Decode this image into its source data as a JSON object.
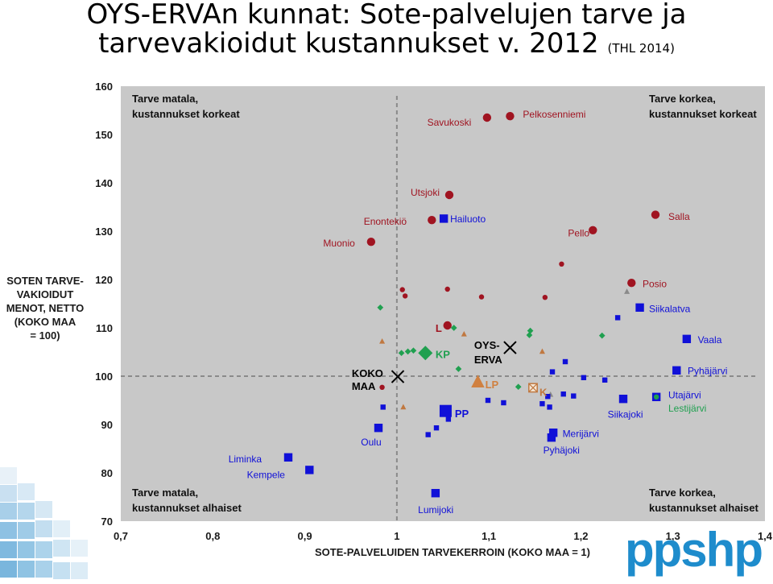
{
  "title": "OYS-ERVAn kunnat: Sote-palvelujen tarve ja",
  "title2": "tarvevakioidut kustannukset v. 2012",
  "title_source": "(THL 2014)",
  "logo": "ppshp",
  "chart_data": {
    "type": "scatter",
    "xlabel": "SOTE-PALVELUIDEN TARVEKERROIN (KOKO MAA = 1)",
    "ylabel_lines": [
      "SOTEN TARVE-",
      "VAKIOIDUT",
      "MENOT, NETTO",
      "(KOKO MAA",
      "= 100)"
    ],
    "xlim": [
      0.7,
      1.4
    ],
    "ylim": [
      70,
      160
    ],
    "xticks": [
      0.7,
      0.8,
      0.9,
      1,
      1.1,
      1.2,
      1.3,
      1.4
    ],
    "xtick_labels": [
      "0,7",
      "0,8",
      "0,9",
      "1",
      "1,1",
      "1,2",
      "1,3",
      "1,4"
    ],
    "yticks": [
      70,
      80,
      90,
      100,
      110,
      120,
      130,
      140,
      150,
      160
    ],
    "reference_lines": {
      "x": 1,
      "y": 100
    },
    "background": "#c8c8c8",
    "colors": {
      "red": "#a01421",
      "blue": "#1010d8",
      "green": "#20a050",
      "orange": "#d08040",
      "brown": "#c07840",
      "black": "#000000",
      "gray": "#8a8a8a"
    },
    "quadrant_labels": [
      {
        "lines": [
          "Tarve matala,",
          "kustannukset korkeat"
        ],
        "pos": "top-left"
      },
      {
        "lines": [
          "Tarve korkea,",
          "kustannukset korkeat"
        ],
        "pos": "top-right"
      },
      {
        "lines": [
          "Tarve matala,",
          "kustannukset alhaiset"
        ],
        "pos": "bottom-left"
      },
      {
        "lines": [
          "Tarve korkea,",
          "kustannukset alhaiset"
        ],
        "pos": "bottom-right"
      }
    ],
    "points": [
      {
        "x": 1.098,
        "y": 153.5,
        "shape": "circle",
        "color": "red",
        "size": "m"
      },
      {
        "x": 1.123,
        "y": 153.8,
        "shape": "circle",
        "color": "red",
        "size": "m"
      },
      {
        "x": 1.057,
        "y": 137.5,
        "shape": "circle",
        "color": "red",
        "size": "m"
      },
      {
        "x": 1.038,
        "y": 132.3,
        "shape": "circle",
        "color": "red",
        "size": "m"
      },
      {
        "x": 1.051,
        "y": 132.6,
        "shape": "square",
        "color": "blue",
        "size": "m"
      },
      {
        "x": 0.972,
        "y": 127.8,
        "shape": "circle",
        "color": "red",
        "size": "m"
      },
      {
        "x": 1.213,
        "y": 130.2,
        "shape": "circle",
        "color": "red",
        "size": "m"
      },
      {
        "x": 1.281,
        "y": 133.4,
        "shape": "circle",
        "color": "red",
        "size": "m"
      },
      {
        "x": 1.179,
        "y": 123.2,
        "shape": "circle",
        "color": "red",
        "size": "s"
      },
      {
        "x": 1.006,
        "y": 117.9,
        "shape": "circle",
        "color": "red",
        "size": "s"
      },
      {
        "x": 1.009,
        "y": 116.6,
        "shape": "circle",
        "color": "red",
        "size": "s"
      },
      {
        "x": 1.055,
        "y": 118.0,
        "shape": "circle",
        "color": "red",
        "size": "s"
      },
      {
        "x": 1.092,
        "y": 116.4,
        "shape": "circle",
        "color": "red",
        "size": "s"
      },
      {
        "x": 1.161,
        "y": 116.3,
        "shape": "circle",
        "color": "red",
        "size": "s"
      },
      {
        "x": 1.255,
        "y": 119.3,
        "shape": "circle",
        "color": "red",
        "size": "m"
      },
      {
        "x": 1.055,
        "y": 110.5,
        "shape": "circle",
        "color": "red",
        "size": "m"
      },
      {
        "x": 0.984,
        "y": 97.7,
        "shape": "circle",
        "color": "red",
        "size": "s"
      },
      {
        "x": 1.25,
        "y": 117.5,
        "shape": "triangle",
        "color": "gray",
        "size": "s"
      },
      {
        "x": 1.264,
        "y": 114.2,
        "shape": "square",
        "color": "blue",
        "size": "m"
      },
      {
        "x": 1.24,
        "y": 112.1,
        "shape": "square",
        "color": "blue",
        "size": "s"
      },
      {
        "x": 1.315,
        "y": 107.7,
        "shape": "square",
        "color": "blue",
        "size": "m"
      },
      {
        "x": 1.304,
        "y": 101.2,
        "shape": "square",
        "color": "blue",
        "size": "m"
      },
      {
        "x": 1.282,
        "y": 95.7,
        "shape": "square",
        "color": "blue",
        "size": "m"
      },
      {
        "x": 1.282,
        "y": 95.7,
        "shape": "circle",
        "color": "green",
        "size": "s"
      },
      {
        "x": 0.982,
        "y": 114.2,
        "shape": "diamond",
        "color": "green",
        "size": "s"
      },
      {
        "x": 0.984,
        "y": 107.2,
        "shape": "triangle",
        "color": "brown",
        "size": "s"
      },
      {
        "x": 1.005,
        "y": 104.8,
        "shape": "diamond",
        "color": "green",
        "size": "s"
      },
      {
        "x": 1.012,
        "y": 105.1,
        "shape": "diamond",
        "color": "green",
        "size": "s"
      },
      {
        "x": 1.018,
        "y": 105.3,
        "shape": "diamond",
        "color": "green",
        "size": "s"
      },
      {
        "x": 1.031,
        "y": 104.8,
        "shape": "diamond",
        "color": "green",
        "size": "l"
      },
      {
        "x": 1.062,
        "y": 110.0,
        "shape": "diamond",
        "color": "green",
        "size": "s"
      },
      {
        "x": 1.073,
        "y": 108.7,
        "shape": "triangle",
        "color": "brown",
        "size": "s"
      },
      {
        "x": 1.067,
        "y": 101.5,
        "shape": "diamond",
        "color": "green",
        "size": "s"
      },
      {
        "x": 1.145,
        "y": 109.4,
        "shape": "diamond",
        "color": "green",
        "size": "s"
      },
      {
        "x": 1.144,
        "y": 108.5,
        "shape": "diamond",
        "color": "green",
        "size": "s"
      },
      {
        "x": 1.158,
        "y": 105.1,
        "shape": "triangle",
        "color": "brown",
        "size": "s"
      },
      {
        "x": 1.223,
        "y": 108.4,
        "shape": "diamond",
        "color": "green",
        "size": "s"
      },
      {
        "x": 1.132,
        "y": 97.8,
        "shape": "diamond",
        "color": "green",
        "size": "s"
      },
      {
        "x": 1.088,
        "y": 98.8,
        "shape": "triangle",
        "color": "orange",
        "size": "l"
      },
      {
        "x": 1.167,
        "y": 96.2,
        "shape": "triangle",
        "color": "gray",
        "size": "s"
      },
      {
        "x": 1.007,
        "y": 93.6,
        "shape": "triangle",
        "color": "brown",
        "size": "s"
      },
      {
        "x": 1.183,
        "y": 103.0,
        "shape": "square",
        "color": "blue",
        "size": "s"
      },
      {
        "x": 1.169,
        "y": 100.9,
        "shape": "square",
        "color": "blue",
        "size": "s"
      },
      {
        "x": 1.203,
        "y": 99.7,
        "shape": "square",
        "color": "blue",
        "size": "s"
      },
      {
        "x": 1.226,
        "y": 99.2,
        "shape": "square",
        "color": "blue",
        "size": "s"
      },
      {
        "x": 1.164,
        "y": 95.8,
        "shape": "square",
        "color": "blue",
        "size": "s"
      },
      {
        "x": 1.181,
        "y": 96.3,
        "shape": "square",
        "color": "blue",
        "size": "s"
      },
      {
        "x": 1.192,
        "y": 95.9,
        "shape": "square",
        "color": "blue",
        "size": "s"
      },
      {
        "x": 1.246,
        "y": 95.3,
        "shape": "square",
        "color": "blue",
        "size": "m"
      },
      {
        "x": 1.099,
        "y": 95.0,
        "shape": "square",
        "color": "blue",
        "size": "s"
      },
      {
        "x": 1.116,
        "y": 94.5,
        "shape": "square",
        "color": "blue",
        "size": "s"
      },
      {
        "x": 1.158,
        "y": 94.3,
        "shape": "square",
        "color": "blue",
        "size": "s"
      },
      {
        "x": 1.166,
        "y": 93.6,
        "shape": "square",
        "color": "blue",
        "size": "s"
      },
      {
        "x": 1.053,
        "y": 92.8,
        "shape": "square",
        "color": "blue",
        "size": "l"
      },
      {
        "x": 1.056,
        "y": 91.1,
        "shape": "square",
        "color": "blue",
        "size": "s"
      },
      {
        "x": 1.043,
        "y": 89.3,
        "shape": "square",
        "color": "blue",
        "size": "s"
      },
      {
        "x": 1.034,
        "y": 87.9,
        "shape": "square",
        "color": "blue",
        "size": "s"
      },
      {
        "x": 0.985,
        "y": 93.6,
        "shape": "square",
        "color": "blue",
        "size": "s"
      },
      {
        "x": 0.98,
        "y": 89.3,
        "shape": "square",
        "color": "blue",
        "size": "m"
      },
      {
        "x": 1.17,
        "y": 88.3,
        "shape": "square",
        "color": "blue",
        "size": "m"
      },
      {
        "x": 1.168,
        "y": 87.3,
        "shape": "square",
        "color": "blue",
        "size": "m"
      },
      {
        "x": 0.882,
        "y": 83.2,
        "shape": "square",
        "color": "blue",
        "size": "m"
      },
      {
        "x": 0.905,
        "y": 80.6,
        "shape": "square",
        "color": "blue",
        "size": "m"
      },
      {
        "x": 1.042,
        "y": 75.8,
        "shape": "square",
        "color": "blue",
        "size": "m"
      },
      {
        "x": 1.148,
        "y": 97.6,
        "shape": "boxx",
        "color": "brown",
        "size": "m"
      },
      {
        "x": 1.001,
        "y": 99.9,
        "shape": "cross",
        "color": "black",
        "size": "l"
      },
      {
        "x": 1.123,
        "y": 105.9,
        "shape": "cross",
        "color": "black",
        "size": "l"
      }
    ],
    "labels": [
      {
        "text": "Savukoski",
        "x": 1.033,
        "y": 152.5,
        "color": "red",
        "bold": false
      },
      {
        "text": "Pelkosenniemi",
        "x": 1.137,
        "y": 154.2,
        "color": "red",
        "bold": false
      },
      {
        "text": "Utsjoki",
        "x": 1.015,
        "y": 138.0,
        "color": "red",
        "bold": false
      },
      {
        "text": "Enontekiö",
        "x": 0.964,
        "y": 132.0,
        "color": "red",
        "bold": false
      },
      {
        "text": "Hailuoto",
        "x": 1.058,
        "y": 132.5,
        "color": "blue",
        "bold": false
      },
      {
        "text": "Muonio",
        "x": 0.92,
        "y": 127.5,
        "color": "red",
        "bold": false
      },
      {
        "text": "Pello",
        "x": 1.186,
        "y": 129.6,
        "color": "red",
        "bold": false
      },
      {
        "text": "Salla",
        "x": 1.295,
        "y": 133.0,
        "color": "red",
        "bold": false
      },
      {
        "text": "Posio",
        "x": 1.267,
        "y": 119.1,
        "color": "red",
        "bold": false
      },
      {
        "text": "Siikalatva",
        "x": 1.274,
        "y": 113.9,
        "color": "blue",
        "bold": false
      },
      {
        "text": "Vaala",
        "x": 1.327,
        "y": 107.5,
        "color": "blue",
        "bold": false
      },
      {
        "text": "Pyhäjärvi",
        "x": 1.316,
        "y": 101.1,
        "color": "blue",
        "bold": false
      },
      {
        "text": "Utajärvi",
        "x": 1.295,
        "y": 96.1,
        "color": "blue",
        "bold": false
      },
      {
        "text": "Lestijärvi",
        "x": 1.295,
        "y": 93.3,
        "color": "green",
        "bold": false
      },
      {
        "text": "Siikajoki",
        "x": 1.229,
        "y": 92.1,
        "color": "blue",
        "bold": false
      },
      {
        "text": "Merijärvi",
        "x": 1.18,
        "y": 88.1,
        "color": "blue",
        "bold": false
      },
      {
        "text": "Pyhäjoki",
        "x": 1.159,
        "y": 84.7,
        "color": "blue",
        "bold": false
      },
      {
        "text": "Oulu",
        "x": 0.961,
        "y": 86.3,
        "color": "blue",
        "bold": false
      },
      {
        "text": "Liminka",
        "x": 0.817,
        "y": 82.8,
        "color": "blue",
        "bold": false
      },
      {
        "text": "Kempele",
        "x": 0.837,
        "y": 79.6,
        "color": "blue",
        "bold": false
      },
      {
        "text": "Lumijoki",
        "x": 1.023,
        "y": 72.3,
        "color": "blue",
        "bold": false
      },
      {
        "text": "L",
        "x": 1.042,
        "y": 109.8,
        "color": "red",
        "bold": true
      },
      {
        "text": "KP",
        "x": 1.042,
        "y": 104.4,
        "color": "green",
        "bold": true
      },
      {
        "text": "LP",
        "x": 1.096,
        "y": 98.2,
        "color": "orange",
        "bold": true
      },
      {
        "text": "K",
        "x": 1.155,
        "y": 96.6,
        "color": "brown",
        "bold": true
      },
      {
        "text": "PP",
        "x": 1.063,
        "y": 92.2,
        "color": "blue",
        "bold": true
      },
      {
        "text": "OYS-",
        "x": 1.084,
        "y": 106.3,
        "color": "black",
        "bold": true
      },
      {
        "text": "ERVA",
        "x": 1.084,
        "y": 103.3,
        "color": "black",
        "bold": true
      },
      {
        "text": "KOKO",
        "x": 0.951,
        "y": 100.5,
        "color": "black",
        "bold": true
      },
      {
        "text": "MAA",
        "x": 0.951,
        "y": 97.8,
        "color": "black",
        "bold": true
      }
    ]
  }
}
